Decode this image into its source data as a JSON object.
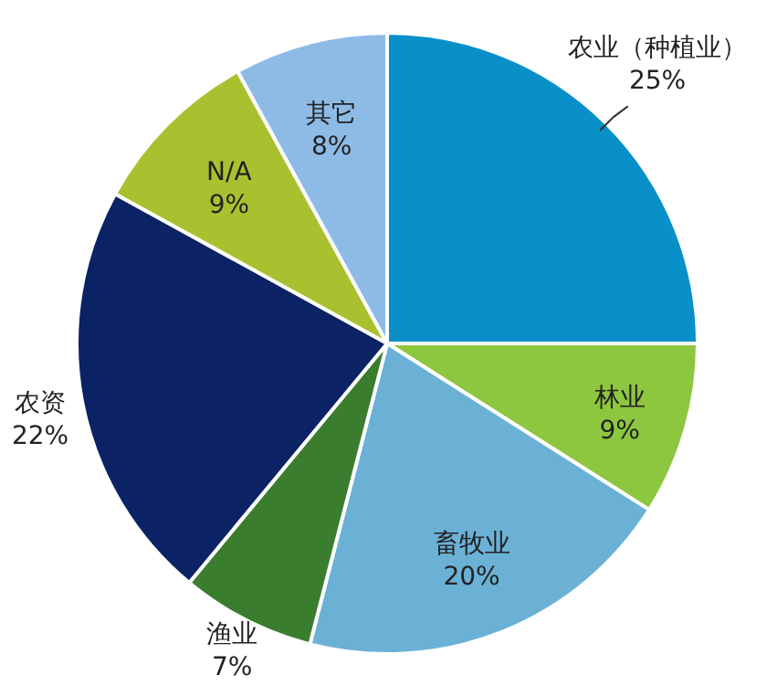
{
  "chart_data": {
    "type": "pie",
    "categories": [
      "农业（种植业）",
      "林业",
      "畜牧业",
      "渔业",
      "农资",
      "N/A",
      "其它"
    ],
    "values": [
      25,
      9,
      20,
      7,
      22,
      9,
      8
    ],
    "colors": [
      "#0a90c8",
      "#8dc63f",
      "#6bb1d6",
      "#3b7d2f",
      "#0b2364",
      "#a9c12f",
      "#8dbbe6"
    ],
    "value_labels": [
      "25%",
      "9%",
      "20%",
      "7%",
      "22%",
      "9%",
      "8%"
    ]
  }
}
